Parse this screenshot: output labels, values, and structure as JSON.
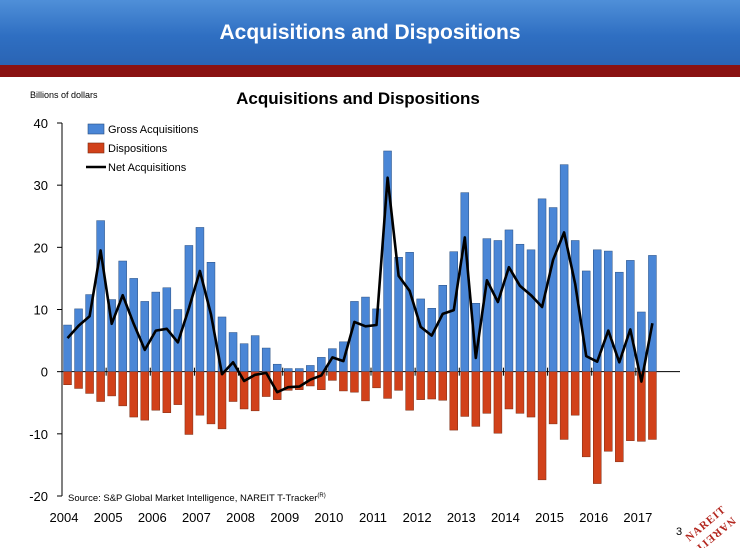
{
  "header": {
    "title": "Acquisitions and Dispositions"
  },
  "page_number": "3",
  "logo_text": "NAREIT",
  "colors": {
    "banner": "#3a7bd0",
    "accent_bar": "#8a1212",
    "gross": "#4a86d6",
    "dispositions": "#d1411a",
    "net": "#000000"
  },
  "chart_data": {
    "type": "bar",
    "title": "Acquisitions and Dispositions",
    "ylabel": "Billions of dollars",
    "xlabel": "",
    "source_prefix": "Source: S&P Global Market Intelligence, NAREIT T-Tracker",
    "source_sup": "(R)",
    "ylim": [
      -20,
      40
    ],
    "yticks": [
      -20,
      -10,
      0,
      10,
      20,
      30,
      40
    ],
    "years": [
      "2004",
      "2005",
      "2006",
      "2007",
      "2008",
      "2009",
      "2010",
      "2011",
      "2012",
      "2013",
      "2014",
      "2015",
      "2016",
      "2017"
    ],
    "legend": [
      "Gross Acquisitions",
      "Dispositions",
      "Net Acquisitions"
    ],
    "legend_position": "top-left",
    "grid": false,
    "quarters_start": "2004 Q1",
    "series": [
      {
        "name": "Gross Acquisitions",
        "kind": "bar",
        "values": [
          7.5,
          10.1,
          12.4,
          24.3,
          11.6,
          17.8,
          15.0,
          11.3,
          12.8,
          13.5,
          10.0,
          20.3,
          23.2,
          17.6,
          8.8,
          6.3,
          4.5,
          5.8,
          3.8,
          1.2,
          0.5,
          0.5,
          1.0,
          2.3,
          3.7,
          4.8,
          11.3,
          12.0,
          10.1,
          35.5,
          18.4,
          19.2,
          11.7,
          10.2,
          13.9,
          19.3,
          28.8,
          11.0,
          21.4,
          21.1,
          22.8,
          20.5,
          19.6,
          27.8,
          26.4,
          33.3,
          21.1,
          16.2,
          19.6,
          19.4,
          16.0,
          17.9,
          9.6,
          18.7
        ]
      },
      {
        "name": "Dispositions",
        "kind": "bar",
        "values": [
          -2.1,
          -2.7,
          -3.5,
          -4.8,
          -3.9,
          -5.5,
          -7.3,
          -7.8,
          -6.2,
          -6.6,
          -5.3,
          -10.1,
          -7.0,
          -8.4,
          -9.2,
          -4.8,
          -6.0,
          -6.3,
          -4.0,
          -4.5,
          -3.0,
          -2.9,
          -2.3,
          -2.9,
          -1.4,
          -3.1,
          -3.3,
          -4.7,
          -2.6,
          -4.3,
          -3.0,
          -6.2,
          -4.5,
          -4.4,
          -4.6,
          -9.4,
          -7.2,
          -8.8,
          -6.7,
          -9.9,
          -6.0,
          -6.7,
          -7.3,
          -17.4,
          -8.4,
          -10.9,
          -7.0,
          -13.7,
          -18.0,
          -12.8,
          -14.5,
          -11.1,
          -11.2,
          -10.9
        ]
      },
      {
        "name": "Net Acquisitions",
        "kind": "line",
        "values": [
          5.4,
          7.4,
          8.9,
          19.5,
          7.7,
          12.3,
          7.7,
          3.5,
          6.6,
          6.9,
          4.7,
          10.2,
          16.2,
          9.2,
          -0.4,
          1.5,
          -1.5,
          -0.5,
          -0.2,
          -3.3,
          -2.5,
          -2.4,
          -1.3,
          -0.6,
          2.3,
          1.7,
          8.0,
          7.3,
          7.5,
          31.2,
          15.4,
          13.0,
          7.2,
          5.8,
          9.3,
          9.9,
          21.6,
          2.2,
          14.7,
          11.2,
          16.8,
          13.8,
          12.3,
          10.4,
          18.0,
          22.4,
          14.1,
          2.5,
          1.6,
          6.6,
          1.5,
          6.8,
          -1.6,
          7.8
        ]
      }
    ]
  }
}
